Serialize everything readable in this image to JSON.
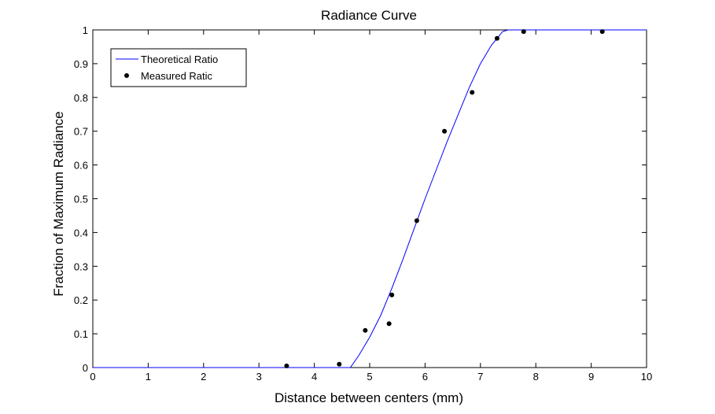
{
  "chart_data": {
    "type": "line",
    "title": "Radiance Curve",
    "xlabel": "Distance between centers (mm)",
    "ylabel": "Fraction of Maximum Radiance",
    "xlim": [
      0,
      10
    ],
    "ylim": [
      0,
      1
    ],
    "xticks": [
      0,
      1,
      2,
      3,
      4,
      5,
      6,
      7,
      8,
      9,
      10
    ],
    "xtick_labels": [
      "0",
      "1",
      "2",
      "3",
      "4",
      "5",
      "6",
      "7",
      "8",
      "9",
      "10"
    ],
    "yticks": [
      0,
      0.1,
      0.2,
      0.3,
      0.4,
      0.5,
      0.6,
      0.7,
      0.8,
      0.9,
      1
    ],
    "ytick_labels": [
      "0",
      "0.1",
      "0.2",
      "0.3",
      "0.4",
      "0.5",
      "0.6",
      "0.7",
      "0.8",
      "0.9",
      "1"
    ],
    "grid": false,
    "legend_position": "top-left",
    "series": [
      {
        "name": "Theoretical Ratio",
        "style": "line",
        "color": "#0000ff",
        "x": [
          0,
          4.65,
          4.8,
          5.0,
          5.2,
          5.4,
          5.6,
          5.8,
          6.0,
          6.2,
          6.4,
          6.6,
          6.8,
          7.0,
          7.2,
          7.4,
          7.5,
          10
        ],
        "y": [
          0,
          0,
          0.035,
          0.09,
          0.155,
          0.235,
          0.32,
          0.41,
          0.5,
          0.585,
          0.67,
          0.75,
          0.83,
          0.9,
          0.955,
          0.995,
          1,
          1
        ]
      },
      {
        "name": "Measured Ratic",
        "style": "markers",
        "color": "#000000",
        "x": [
          3.5,
          4.45,
          4.92,
          5.35,
          5.4,
          5.85,
          6.35,
          6.85,
          7.3,
          7.78,
          9.2
        ],
        "y": [
          0.005,
          0.01,
          0.11,
          0.13,
          0.215,
          0.435,
          0.7,
          0.815,
          0.975,
          0.995,
          0.995
        ]
      }
    ]
  }
}
